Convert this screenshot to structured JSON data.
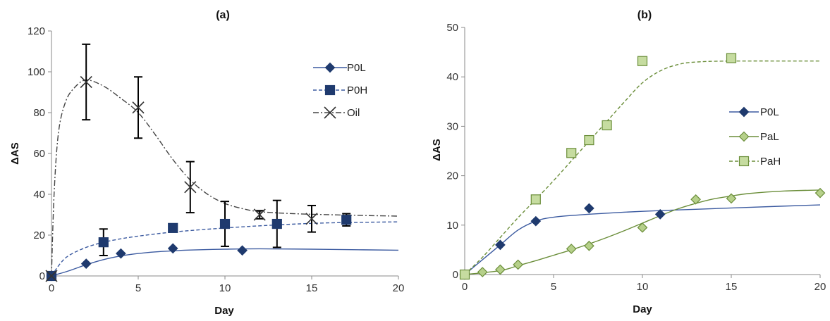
{
  "chart_data": [
    {
      "type": "scatter",
      "title": "(a)",
      "xlabel": "Day",
      "ylabel": "ΔAS",
      "xlim": [
        0,
        20
      ],
      "ylim": [
        0,
        120
      ],
      "xticks": [
        0,
        5,
        10,
        15,
        20
      ],
      "yticks": [
        0,
        20,
        40,
        60,
        80,
        100,
        120
      ],
      "legend_position": "top-right",
      "series": [
        {
          "name": "P0L",
          "marker": "diamond",
          "color": "#1f3a6e",
          "line": "solid",
          "x": [
            0,
            2,
            4,
            7,
            11
          ],
          "y": [
            0,
            6,
            11,
            13.5,
            12.5
          ],
          "fit": [
            [
              0,
              0
            ],
            [
              1,
              2.5
            ],
            [
              2,
              5.5
            ],
            [
              3,
              8
            ],
            [
              4,
              9.8
            ],
            [
              5,
              11
            ],
            [
              6,
              11.8
            ],
            [
              7,
              12.3
            ],
            [
              8,
              12.7
            ],
            [
              10,
              13.1
            ],
            [
              12,
              13.3
            ],
            [
              15,
              13.1
            ],
            [
              18,
              12.8
            ],
            [
              20,
              12.6
            ]
          ]
        },
        {
          "name": "P0H",
          "marker": "square",
          "color": "#1f3a6e",
          "line": "dashed",
          "x": [
            0,
            3,
            7,
            10,
            13,
            17
          ],
          "y": [
            0,
            16.5,
            23.5,
            25.5,
            25.5,
            27.5
          ],
          "yerr": [
            0,
            6.5,
            1.5,
            11,
            11.5,
            3
          ],
          "fit": [
            [
              0,
              0
            ],
            [
              0.5,
              6
            ],
            [
              1,
              10
            ],
            [
              2,
              14
            ],
            [
              3,
              16.5
            ],
            [
              4,
              18.2
            ],
            [
              5,
              19.5
            ],
            [
              7,
              21.5
            ],
            [
              10,
              23.5
            ],
            [
              13,
              25
            ],
            [
              16,
              26
            ],
            [
              20,
              26.5
            ]
          ]
        },
        {
          "name": "Oil",
          "marker": "cross",
          "color": "#333333",
          "line": "dashdot",
          "x": [
            0,
            2,
            5,
            8,
            12,
            15
          ],
          "y": [
            0,
            95,
            82.5,
            43.5,
            30,
            28
          ],
          "yerr": [
            0,
            18.5,
            15,
            12.5,
            2,
            6.5
          ],
          "fit": [
            [
              0,
              0
            ],
            [
              0.15,
              40
            ],
            [
              0.4,
              70
            ],
            [
              0.8,
              85
            ],
            [
              1.3,
              92
            ],
            [
              2,
              96
            ],
            [
              3,
              93
            ],
            [
              4,
              87
            ],
            [
              5,
              80
            ],
            [
              6,
              69
            ],
            [
              7,
              57
            ],
            [
              8,
              47
            ],
            [
              9,
              40
            ],
            [
              10,
              35.5
            ],
            [
              11,
              33
            ],
            [
              12,
              31.5
            ],
            [
              14,
              30.5
            ],
            [
              17,
              29.8
            ],
            [
              20,
              29.3
            ]
          ]
        }
      ]
    },
    {
      "type": "scatter",
      "title": "(b)",
      "xlabel": "Day",
      "ylabel": "ΔAS",
      "xlim": [
        0,
        20
      ],
      "ylim": [
        0,
        50
      ],
      "xticks": [
        0,
        5,
        10,
        15,
        20
      ],
      "yticks": [
        0,
        10,
        20,
        30,
        40,
        50
      ],
      "legend_position": "right",
      "series": [
        {
          "name": "P0L",
          "marker": "diamond",
          "color": "#1f3a6e",
          "line": "solid",
          "x": [
            0,
            2,
            4,
            7,
            11
          ],
          "y": [
            0,
            6,
            10.8,
            13.4,
            12.2
          ],
          "fit": [
            [
              0,
              0
            ],
            [
              1,
              3
            ],
            [
              2,
              6
            ],
            [
              3,
              9
            ],
            [
              4,
              10.8
            ],
            [
              5,
              11.6
            ],
            [
              7,
              12.2
            ],
            [
              10,
              12.8
            ],
            [
              13,
              13.2
            ],
            [
              16,
              13.6
            ],
            [
              20,
              14.1
            ]
          ]
        },
        {
          "name": "PaL",
          "marker": "diamond",
          "color": "#6b8e3a",
          "line": "solid",
          "x": [
            0,
            1,
            2,
            3,
            6,
            7,
            10,
            13,
            15,
            20
          ],
          "y": [
            0,
            0.5,
            1,
            2,
            5.2,
            5.8,
            9.5,
            15.2,
            15.4,
            16.5
          ],
          "fit": [
            [
              0,
              0
            ],
            [
              2,
              0.8
            ],
            [
              3,
              1.8
            ],
            [
              4,
              2.8
            ],
            [
              5,
              3.9
            ],
            [
              6,
              5
            ],
            [
              7,
              6.2
            ],
            [
              8,
              7.5
            ],
            [
              9,
              8.9
            ],
            [
              10,
              10.4
            ],
            [
              11,
              11.9
            ],
            [
              12,
              13.3
            ],
            [
              13,
              14.4
            ],
            [
              14,
              15.3
            ],
            [
              15,
              15.9
            ],
            [
              16,
              16.4
            ],
            [
              18,
              16.9
            ],
            [
              20,
              17.1
            ]
          ]
        },
        {
          "name": "PaH",
          "marker": "square",
          "color": "#6b8e3a",
          "line": "dashed",
          "x": [
            0,
            4,
            6,
            7,
            8,
            10,
            15
          ],
          "y": [
            0,
            15.2,
            24.6,
            27.2,
            30.2,
            43.2,
            43.8
          ],
          "fit": [
            [
              0,
              0
            ],
            [
              1,
              3.5
            ],
            [
              2,
              7.5
            ],
            [
              3,
              11.5
            ],
            [
              4,
              15.2
            ],
            [
              5,
              19
            ],
            [
              6,
              23
            ],
            [
              7,
              27
            ],
            [
              8,
              31
            ],
            [
              9,
              35
            ],
            [
              10,
              38.8
            ],
            [
              11,
              41.2
            ],
            [
              12,
              42.5
            ],
            [
              13,
              43
            ],
            [
              15,
              43.2
            ],
            [
              20,
              43.2
            ]
          ]
        }
      ]
    }
  ]
}
